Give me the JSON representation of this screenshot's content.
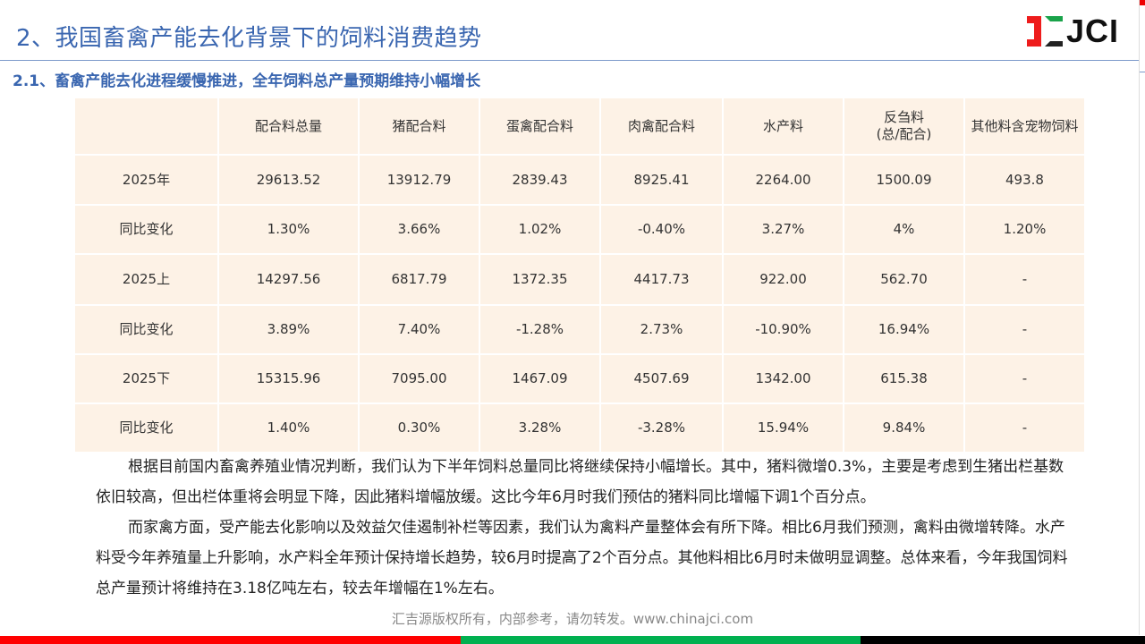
{
  "header": {
    "title": "2、我国畜禽产能去化背景下的饲料消费趋势",
    "subtitle": "2.1、畜禽产能去化进程缓慢推进，全年饲料总产量预期维持小幅增长",
    "logo_text": "JCI"
  },
  "table": {
    "columns": [
      "",
      "配合料总量",
      "猪配合料",
      "蛋禽配合料",
      "肉禽配合料",
      "水产料",
      "反刍料\n(总/配合)",
      "其他料含宠物饲料"
    ],
    "rows": [
      [
        "2025年",
        "29613.52",
        "13912.79",
        "2839.43",
        "8925.41",
        "2264.00",
        "1500.09",
        "493.8"
      ],
      [
        "同比变化",
        "1.30%",
        "3.66%",
        "1.02%",
        "-0.40%",
        "3.27%",
        "4%",
        "1.20%"
      ],
      [
        "2025上",
        "14297.56",
        "6817.79",
        "1372.35",
        "4417.73",
        "922.00",
        "562.70",
        "-"
      ],
      [
        "同比变化",
        "3.89%",
        "7.40%",
        "-1.28%",
        "2.73%",
        "-10.90%",
        "16.94%",
        "-"
      ],
      [
        "2025下",
        "15315.96",
        "7095.00",
        "1467.09",
        "4507.69",
        "1342.00",
        "615.38",
        "-"
      ],
      [
        "同比变化",
        "1.40%",
        "0.30%",
        "3.28%",
        "-3.28%",
        "15.94%",
        "9.84%",
        "-"
      ]
    ]
  },
  "body": {
    "paragraphs": [
      "根据目前国内畜禽养殖业情况判断，我们认为下半年饲料总量同比将继续保持小幅增长。其中，猪料微增0.3%，主要是考虑到生猪出栏基数依旧较高，但出栏体重将会明显下降，因此猪料增幅放缓。这比今年6月时我们预估的猪料同比增幅下调1个百分点。",
      "而家禽方面，受产能去化影响以及效益欠佳遏制补栏等因素，我们认为禽料产量整体会有所下降。相比6月我们预测，禽料由微增转降。水产料受今年养殖量上升影响，水产料全年预计保持增长趋势，较6月时提高了2个百分点。其他料相比6月时未做明显调整。总体来看，今年我国饲料总产量预计将维持在3.18亿吨左右，较去年增幅在1%左右。"
    ]
  },
  "footer": {
    "text": "汇吉源版权所有，内部参考，请勿转发。www.chinajci.com"
  },
  "colors": {
    "title": "#3a66b0",
    "cell": "#fdf2e6",
    "bar_red": "#ff0000",
    "bar_green": "#00b050",
    "bar_black": "#000000"
  }
}
